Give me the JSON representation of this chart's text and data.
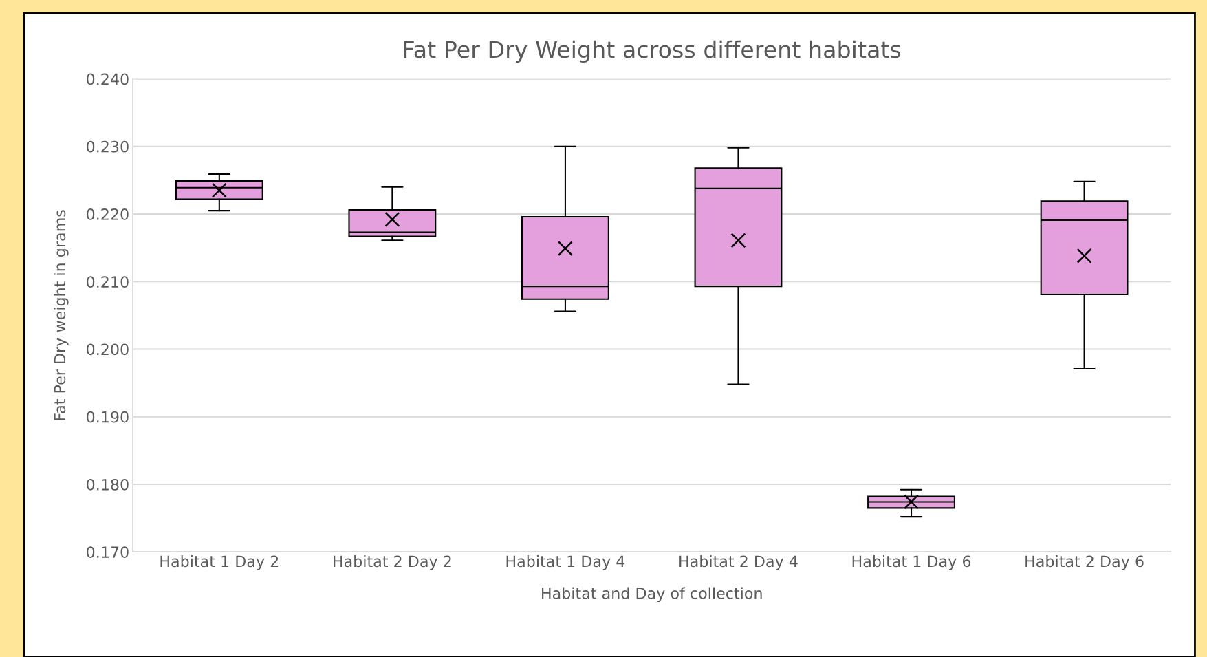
{
  "chart_data": {
    "type": "box",
    "title": "Fat Per Dry Weight across different habitats",
    "xlabel": "Habitat and Day of collection",
    "ylabel": "Fat Per Dry weight in grams",
    "categories": [
      "Habitat 1 Day 2",
      "Habitat 2 Day 2",
      "Habitat 1 Day 4",
      "Habitat 2 Day 4",
      "Habitat 1 Day 6",
      "Habitat 2 Day 6"
    ],
    "boxes": [
      {
        "low": 0.2205,
        "q1": 0.2222,
        "median": 0.2239,
        "q3": 0.2249,
        "high": 0.2259,
        "mean": 0.2235
      },
      {
        "low": 0.2161,
        "q1": 0.2167,
        "median": 0.2173,
        "q3": 0.2206,
        "high": 0.224,
        "mean": 0.2192
      },
      {
        "low": 0.2056,
        "q1": 0.2074,
        "median": 0.2093,
        "q3": 0.2196,
        "high": 0.23,
        "mean": 0.2149
      },
      {
        "low": 0.1948,
        "q1": 0.2093,
        "median": 0.2238,
        "q3": 0.2268,
        "high": 0.2298,
        "mean": 0.2161
      },
      {
        "low": 0.1752,
        "q1": 0.1765,
        "median": 0.1774,
        "q3": 0.1782,
        "high": 0.1792,
        "mean": 0.1774
      },
      {
        "low": 0.1971,
        "q1": 0.2081,
        "median": 0.2191,
        "q3": 0.2219,
        "high": 0.2248,
        "mean": 0.2138
      }
    ],
    "color": "#e4a0dc",
    "marker": "cross",
    "ylim": [
      0.17,
      0.24
    ],
    "yticks": [
      {
        "value": 0.17,
        "label": "0.170"
      },
      {
        "value": 0.18,
        "label": "0.180"
      },
      {
        "value": 0.19,
        "label": "0.190"
      },
      {
        "value": 0.2,
        "label": "0.200"
      },
      {
        "value": 0.21,
        "label": "0.210"
      },
      {
        "value": 0.22,
        "label": "0.220"
      },
      {
        "value": 0.23,
        "label": "0.230"
      },
      {
        "value": 0.24,
        "label": "0.240"
      }
    ],
    "grid": "y"
  }
}
